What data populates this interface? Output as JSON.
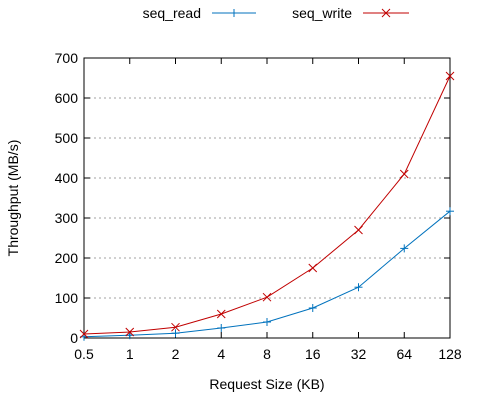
{
  "chart_data": {
    "type": "line",
    "title": "",
    "xlabel": "Request Size (KB)",
    "ylabel": "Throughput (MB/s)",
    "categories": [
      "0.5",
      "1",
      "2",
      "4",
      "8",
      "16",
      "32",
      "64",
      "128"
    ],
    "ylim": [
      0,
      700
    ],
    "yticks": [
      "0",
      "100",
      "200",
      "300",
      "400",
      "500",
      "600",
      "700"
    ],
    "grid": true,
    "legend_position": "top",
    "series": [
      {
        "name": "seq_read",
        "color": "#0072bd",
        "marker": "plus",
        "values": [
          3,
          7,
          12,
          25,
          40,
          75,
          127,
          224,
          317
        ]
      },
      {
        "name": "seq_write",
        "color": "#c00000",
        "marker": "cross",
        "values": [
          10,
          15,
          27,
          60,
          102,
          175,
          270,
          410,
          655
        ]
      }
    ]
  }
}
